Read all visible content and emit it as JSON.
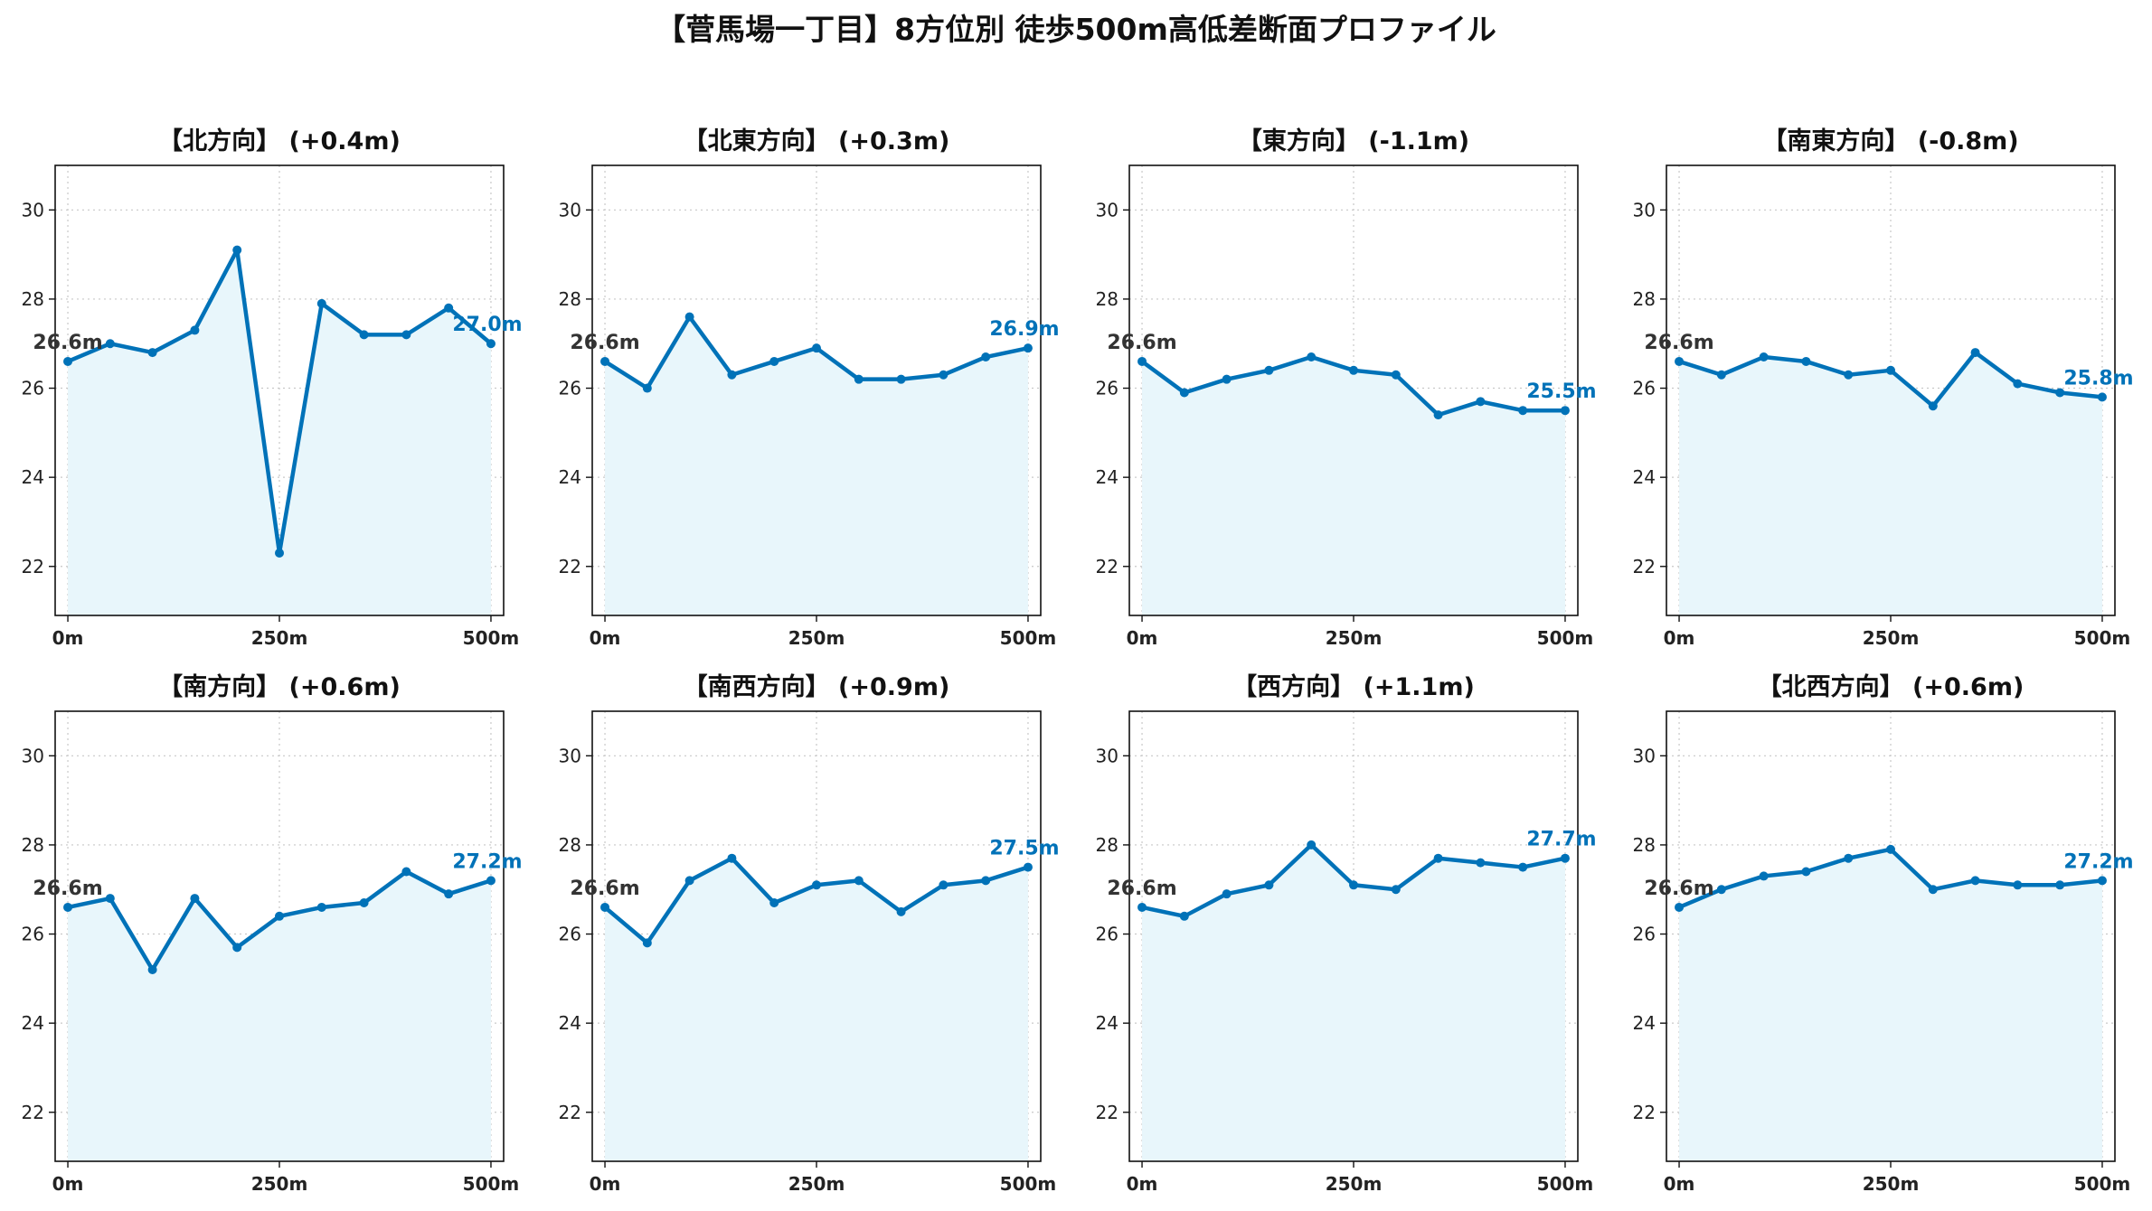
{
  "figure_title": "【菅馬場一丁目】8方位別 徒歩500m高低差断面プロファイル",
  "colors": {
    "line": "#0072b8",
    "fill": "#e8f6fb",
    "start_label": "#333333",
    "end_label": "#0072b8"
  },
  "chart_data": [
    {
      "type": "area",
      "title": "【北方向】 (+0.4m)",
      "x": [
        0,
        50,
        100,
        150,
        200,
        250,
        300,
        350,
        400,
        450,
        500
      ],
      "values": [
        26.6,
        27.0,
        26.8,
        27.3,
        29.1,
        22.3,
        27.9,
        27.2,
        27.2,
        27.8,
        27.0
      ],
      "xlim": [
        -15,
        515
      ],
      "ylim": [
        20.9,
        31.0
      ],
      "yticks": [
        22,
        24,
        26,
        28,
        30
      ],
      "xticks": [
        0,
        250,
        500
      ],
      "xtick_labels": [
        "0m",
        "250m",
        "500m"
      ],
      "start_label": "26.6m",
      "end_label": "27.0m",
      "grid": true
    },
    {
      "type": "area",
      "title": "【北東方向】 (+0.3m)",
      "x": [
        0,
        50,
        100,
        150,
        200,
        250,
        300,
        350,
        400,
        450,
        500
      ],
      "values": [
        26.6,
        26.0,
        27.6,
        26.3,
        26.6,
        26.9,
        26.2,
        26.2,
        26.3,
        26.7,
        26.9
      ],
      "xlim": [
        -15,
        515
      ],
      "ylim": [
        20.9,
        31.0
      ],
      "yticks": [
        22,
        24,
        26,
        28,
        30
      ],
      "xticks": [
        0,
        250,
        500
      ],
      "xtick_labels": [
        "0m",
        "250m",
        "500m"
      ],
      "start_label": "26.6m",
      "end_label": "26.9m",
      "grid": true
    },
    {
      "type": "area",
      "title": "【東方向】 (-1.1m)",
      "x": [
        0,
        50,
        100,
        150,
        200,
        250,
        300,
        350,
        400,
        450,
        500
      ],
      "values": [
        26.6,
        25.9,
        26.2,
        26.4,
        26.7,
        26.4,
        26.3,
        25.4,
        25.7,
        25.5,
        25.5
      ],
      "xlim": [
        -15,
        515
      ],
      "ylim": [
        20.9,
        31.0
      ],
      "yticks": [
        22,
        24,
        26,
        28,
        30
      ],
      "xticks": [
        0,
        250,
        500
      ],
      "xtick_labels": [
        "0m",
        "250m",
        "500m"
      ],
      "start_label": "26.6m",
      "end_label": "25.5m",
      "grid": true
    },
    {
      "type": "area",
      "title": "【南東方向】 (-0.8m)",
      "x": [
        0,
        50,
        100,
        150,
        200,
        250,
        300,
        350,
        400,
        450,
        500
      ],
      "values": [
        26.6,
        26.3,
        26.7,
        26.6,
        26.3,
        26.4,
        25.6,
        26.8,
        26.1,
        25.9,
        25.8
      ],
      "xlim": [
        -15,
        515
      ],
      "ylim": [
        20.9,
        31.0
      ],
      "yticks": [
        22,
        24,
        26,
        28,
        30
      ],
      "xticks": [
        0,
        250,
        500
      ],
      "xtick_labels": [
        "0m",
        "250m",
        "500m"
      ],
      "start_label": "26.6m",
      "end_label": "25.8m",
      "grid": true
    },
    {
      "type": "area",
      "title": "【南方向】 (+0.6m)",
      "x": [
        0,
        50,
        100,
        150,
        200,
        250,
        300,
        350,
        400,
        450,
        500
      ],
      "values": [
        26.6,
        26.8,
        25.2,
        26.8,
        25.7,
        26.4,
        26.6,
        26.7,
        27.4,
        26.9,
        27.2
      ],
      "xlim": [
        -15,
        515
      ],
      "ylim": [
        20.9,
        31.0
      ],
      "yticks": [
        22,
        24,
        26,
        28,
        30
      ],
      "xticks": [
        0,
        250,
        500
      ],
      "xtick_labels": [
        "0m",
        "250m",
        "500m"
      ],
      "start_label": "26.6m",
      "end_label": "27.2m",
      "grid": true
    },
    {
      "type": "area",
      "title": "【南西方向】 (+0.9m)",
      "x": [
        0,
        50,
        100,
        150,
        200,
        250,
        300,
        350,
        400,
        450,
        500
      ],
      "values": [
        26.6,
        25.8,
        27.2,
        27.7,
        26.7,
        27.1,
        27.2,
        26.5,
        27.1,
        27.2,
        27.5
      ],
      "xlim": [
        -15,
        515
      ],
      "ylim": [
        20.9,
        31.0
      ],
      "yticks": [
        22,
        24,
        26,
        28,
        30
      ],
      "xticks": [
        0,
        250,
        500
      ],
      "xtick_labels": [
        "0m",
        "250m",
        "500m"
      ],
      "start_label": "26.6m",
      "end_label": "27.5m",
      "grid": true
    },
    {
      "type": "area",
      "title": "【西方向】 (+1.1m)",
      "x": [
        0,
        50,
        100,
        150,
        200,
        250,
        300,
        350,
        400,
        450,
        500
      ],
      "values": [
        26.6,
        26.4,
        26.9,
        27.1,
        28.0,
        27.1,
        27.0,
        27.7,
        27.6,
        27.5,
        27.7
      ],
      "xlim": [
        -15,
        515
      ],
      "ylim": [
        20.9,
        31.0
      ],
      "yticks": [
        22,
        24,
        26,
        28,
        30
      ],
      "xticks": [
        0,
        250,
        500
      ],
      "xtick_labels": [
        "0m",
        "250m",
        "500m"
      ],
      "start_label": "26.6m",
      "end_label": "27.7m",
      "grid": true
    },
    {
      "type": "area",
      "title": "【北西方向】 (+0.6m)",
      "x": [
        0,
        50,
        100,
        150,
        200,
        250,
        300,
        350,
        400,
        450,
        500
      ],
      "values": [
        26.6,
        27.0,
        27.3,
        27.4,
        27.7,
        27.9,
        27.0,
        27.2,
        27.1,
        27.1,
        27.2
      ],
      "xlim": [
        -15,
        515
      ],
      "ylim": [
        20.9,
        31.0
      ],
      "yticks": [
        22,
        24,
        26,
        28,
        30
      ],
      "xticks": [
        0,
        250,
        500
      ],
      "xtick_labels": [
        "0m",
        "250m",
        "500m"
      ],
      "start_label": "26.6m",
      "end_label": "27.2m",
      "grid": true
    }
  ]
}
